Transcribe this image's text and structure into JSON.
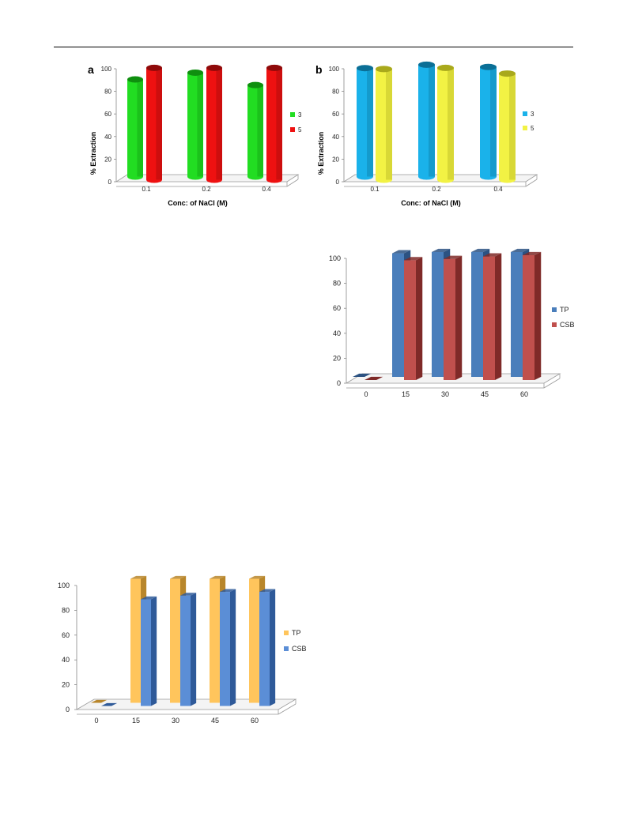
{
  "chart_data": [
    {
      "panel_letter": "a",
      "type": "bar",
      "categories": [
        "0.1",
        "0.2",
        "0.4"
      ],
      "series": [
        {
          "name": "3",
          "values": [
            86,
            92,
            81
          ],
          "color": "#22dd22",
          "color_dark": "#0f8f0f"
        },
        {
          "name": "5",
          "values": [
            99,
            99,
            99
          ],
          "color": "#ee1111",
          "color_dark": "#8f0a0a"
        }
      ],
      "xlabel": "Conc: of NaCl (M)",
      "ylabel": "% Extraction",
      "ylim": [
        0,
        100
      ],
      "yticks": [
        "0",
        "20",
        "40",
        "60",
        "80",
        "100"
      ],
      "shape": "cylinder",
      "legend": "right"
    },
    {
      "panel_letter": "b",
      "type": "bar",
      "categories": [
        "0.1",
        "0.2",
        "0.4"
      ],
      "series": [
        {
          "name": "3",
          "values": [
            96,
            99,
            97
          ],
          "color": "#1ab2ea",
          "color_dark": "#0b6f96"
        },
        {
          "name": "5",
          "values": [
            98,
            99,
            94
          ],
          "color": "#f2f244",
          "color_dark": "#a9a91c"
        }
      ],
      "xlabel": "Conc: of NaCl (M)",
      "ylabel": "% Extraction",
      "ylim": [
        0,
        100
      ],
      "yticks": [
        "0",
        "20",
        "40",
        "60",
        "80",
        "100"
      ],
      "shape": "cylinder",
      "legend": "right"
    },
    {
      "type": "bar",
      "categories": [
        "0",
        "15",
        "30",
        "45",
        "60"
      ],
      "series": [
        {
          "name": "TP",
          "values": [
            0,
            99,
            100,
            100,
            100
          ],
          "color": "#4a7ebb",
          "color_dark": "#2c5282"
        },
        {
          "name": "CSB",
          "values": [
            0,
            96,
            97,
            99,
            100
          ],
          "color": "#c0504d",
          "color_dark": "#7f2a28"
        }
      ],
      "ylim": [
        0,
        100
      ],
      "yticks": [
        "0",
        "20",
        "40",
        "60",
        "80",
        "100"
      ],
      "shape": "box",
      "legend": "right"
    },
    {
      "type": "bar",
      "categories": [
        "0",
        "15",
        "30",
        "45",
        "60"
      ],
      "series": [
        {
          "name": "TP",
          "values": [
            0,
            100,
            100,
            100,
            100
          ],
          "color": "#ffc55c",
          "color_dark": "#b8862b"
        },
        {
          "name": "CSB",
          "values": [
            0,
            86,
            89,
            92,
            92
          ],
          "color": "#5b8ed6",
          "color_dark": "#2f5a99"
        }
      ],
      "ylim": [
        0,
        100
      ],
      "yticks": [
        "0",
        "20",
        "40",
        "60",
        "80",
        "100"
      ],
      "shape": "box",
      "legend": "right"
    }
  ]
}
